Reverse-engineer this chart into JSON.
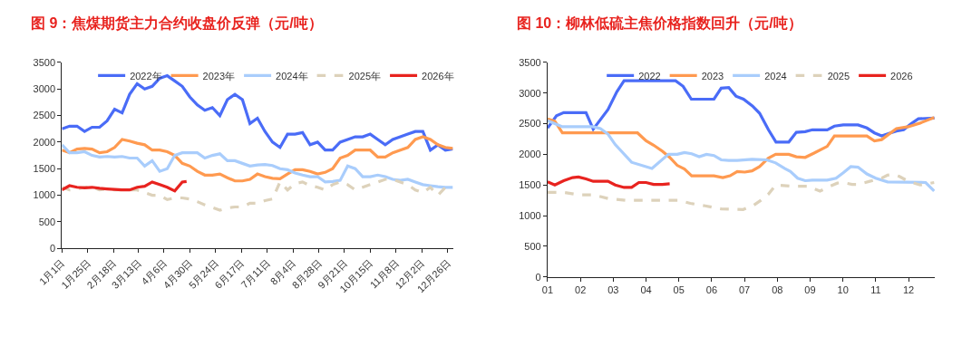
{
  "chart_data": [
    {
      "type": "line",
      "title": "图 9：焦煤期货主力合约收盘价反弹（元/吨）",
      "x": [
        "--01-01",
        "--01-08",
        "--01-15",
        "--01-22",
        "--01-29",
        "--02-05",
        "--02-12",
        "--02-19",
        "--02-26",
        "--03-05",
        "--03-12",
        "--03-19",
        "--03-26",
        "--04-02",
        "--04-09",
        "--04-16",
        "--04-23",
        "--04-30",
        "--05-07",
        "--05-14",
        "--05-21",
        "--05-28",
        "--06-04",
        "--06-11",
        "--06-18",
        "--06-25",
        "--07-02",
        "--07-09",
        "--07-16",
        "--07-23",
        "--07-30",
        "--08-06",
        "--08-13",
        "--08-20",
        "--08-27",
        "--09-03",
        "--09-10",
        "--09-17",
        "--09-24",
        "--10-01",
        "--10-08",
        "--10-15",
        "--10-22",
        "--10-29",
        "--11-05",
        "--11-12",
        "--11-19",
        "--11-26",
        "--12-03",
        "--12-10",
        "--12-17",
        "--12-24",
        "--12-31"
      ],
      "series": [
        {
          "name": "2022年",
          "color": "#4a6cf7",
          "values": [
            2250,
            2300,
            2300,
            2200,
            2280,
            2280,
            2400,
            2620,
            2550,
            2900,
            3100,
            3000,
            3050,
            3200,
            3250,
            3150,
            3050,
            2850,
            2700,
            2600,
            2650,
            2500,
            2800,
            2900,
            2800,
            2350,
            2450,
            2200,
            2000,
            1900,
            2150,
            2150,
            2180,
            1950,
            2000,
            1850,
            1850,
            2000,
            2050,
            2100,
            2100,
            2150,
            2050,
            1950,
            2050,
            2100,
            2150,
            2200,
            2200,
            1850,
            1950,
            1850,
            1870
          ]
        },
        {
          "name": "2023年",
          "color": "#ff9a50",
          "values": [
            1850,
            1800,
            1870,
            1880,
            1870,
            1800,
            1820,
            1900,
            2050,
            2020,
            1980,
            1950,
            1850,
            1850,
            1820,
            1750,
            1600,
            1550,
            1450,
            1380,
            1380,
            1400,
            1330,
            1270,
            1270,
            1300,
            1400,
            1350,
            1320,
            1310,
            1400,
            1480,
            1480,
            1450,
            1400,
            1430,
            1500,
            1700,
            1750,
            1850,
            1850,
            1850,
            1720,
            1720,
            1800,
            1850,
            1900,
            2050,
            2100,
            2050,
            1950,
            1900,
            1880
          ]
        },
        {
          "name": "2024年",
          "color": "#a9cdfc",
          "values": [
            1950,
            1800,
            1800,
            1820,
            1750,
            1720,
            1730,
            1720,
            1730,
            1700,
            1700,
            1550,
            1650,
            1450,
            1500,
            1750,
            1800,
            1800,
            1800,
            1700,
            1750,
            1780,
            1650,
            1650,
            1600,
            1550,
            1570,
            1580,
            1560,
            1500,
            1480,
            1420,
            1380,
            1350,
            1350,
            1250,
            1260,
            1280,
            1550,
            1500,
            1350,
            1350,
            1380,
            1350,
            1300,
            1280,
            1300,
            1250,
            1200,
            1180,
            1160,
            1150,
            1150
          ]
        },
        {
          "name": "2025年",
          "color": "#ddd2bb",
          "line_style": "dashed",
          "values": [
            1150,
            1100,
            1120,
            1150,
            1150,
            1100,
            1120,
            1100,
            1100,
            1100,
            1100,
            1050,
            1000,
            1000,
            920,
            950,
            950,
            930,
            880,
            820,
            770,
            720,
            760,
            780,
            780,
            850,
            850,
            900,
            930,
            1250,
            1100,
            1220,
            1250,
            1180,
            1150,
            1100,
            1200,
            1250,
            1200,
            1100,
            1150,
            1200,
            1250,
            1300,
            1300,
            1250,
            1200,
            1100,
            1050,
            1150,
            1000,
            1150,
            1120
          ]
        },
        {
          "name": "2026年",
          "color": "#e8231f",
          "x": [
            "--01-01",
            "--01-08",
            "--01-15",
            "--01-22",
            "--01-29",
            "--02-05",
            "--02-12",
            "--02-19",
            "--02-26",
            "--03-05",
            "--03-12",
            "--03-19",
            "--03-26",
            "--04-02",
            "--04-09",
            "--04-16",
            "--04-23",
            "--04-27"
          ],
          "values": [
            1100,
            1180,
            1150,
            1140,
            1150,
            1130,
            1120,
            1110,
            1100,
            1100,
            1150,
            1170,
            1250,
            1200,
            1150,
            1080,
            1250,
            1260
          ]
        }
      ],
      "xlim": [
        "--01-01",
        "--12-31"
      ],
      "xticks": [
        {
          "value": "--01-01",
          "label": "1月1日"
        },
        {
          "value": "--01-25",
          "label": "1月25日"
        },
        {
          "value": "--02-18",
          "label": "2月18日"
        },
        {
          "value": "--03-13",
          "label": "3月13日"
        },
        {
          "value": "--04-06",
          "label": "4月6日"
        },
        {
          "value": "--04-30",
          "label": "4月30日"
        },
        {
          "value": "--05-24",
          "label": "5月24日"
        },
        {
          "value": "--06-17",
          "label": "6月17日"
        },
        {
          "value": "--07-11",
          "label": "7月11日"
        },
        {
          "value": "--08-04",
          "label": "8月4日"
        },
        {
          "value": "--08-28",
          "label": "8月28日"
        },
        {
          "value": "--09-21",
          "label": "9月21日"
        },
        {
          "value": "--10-15",
          "label": "10月15日"
        },
        {
          "value": "--11-08",
          "label": "11月8日"
        },
        {
          "value": "--12-02",
          "label": "12月2日"
        },
        {
          "value": "--12-26",
          "label": "12月26日"
        }
      ],
      "ylim": [
        0,
        3500
      ],
      "yticks": [
        0,
        500,
        1000,
        1500,
        2000,
        2500,
        3000,
        3500
      ],
      "grid": false,
      "legend": "top",
      "marker": "none",
      "line_style": "solid"
    },
    {
      "type": "line",
      "title": "图 10：柳林低硫主焦价格指数回升（元/吨）",
      "series": [
        {
          "name": "2022",
          "color": "#4a6cf7",
          "x": [
            1.0,
            1.27,
            1.49,
            2.17,
            2.39,
            2.84,
            3.11,
            3.33,
            4.9,
            5.13,
            5.38,
            6.07,
            6.29,
            6.52,
            6.74,
            6.97,
            7.24,
            7.46,
            7.73,
            7.96,
            8.35,
            8.58,
            8.85,
            9.07,
            9.52,
            9.74,
            10.01,
            10.46,
            10.73,
            10.96,
            11.18,
            11.45,
            11.63,
            11.85,
            12.08,
            12.3,
            12.79
          ],
          "values": [
            2430,
            2630,
            2680,
            2680,
            2410,
            2730,
            3020,
            3200,
            3200,
            3110,
            2900,
            2900,
            3080,
            3090,
            2950,
            2900,
            2790,
            2670,
            2400,
            2200,
            2200,
            2360,
            2370,
            2400,
            2400,
            2460,
            2480,
            2480,
            2430,
            2350,
            2300,
            2350,
            2380,
            2400,
            2500,
            2580,
            2590
          ]
        },
        {
          "name": "2023",
          "color": "#ff9a50",
          "x": [
            1.0,
            1.22,
            1.45,
            3.74,
            4.0,
            4.23,
            4.5,
            4.72,
            4.95,
            5.17,
            5.39,
            6.07,
            6.34,
            6.56,
            6.78,
            7.01,
            7.23,
            7.46,
            7.73,
            7.95,
            8.35,
            8.58,
            8.85,
            9.12,
            9.52,
            9.74,
            10.73,
            10.96,
            11.18,
            11.63,
            11.99,
            12.35,
            12.78
          ],
          "values": [
            2580,
            2540,
            2350,
            2350,
            2220,
            2150,
            2050,
            1950,
            1820,
            1760,
            1650,
            1650,
            1620,
            1650,
            1720,
            1710,
            1730,
            1800,
            1940,
            2000,
            2000,
            1960,
            1950,
            2020,
            2130,
            2300,
            2300,
            2220,
            2240,
            2420,
            2450,
            2510,
            2600
          ]
        },
        {
          "name": "2024",
          "color": "#a9cdfc",
          "x": [
            1.0,
            1.45,
            2.39,
            2.61,
            2.84,
            3.06,
            3.56,
            4.18,
            4.68,
            4.95,
            5.17,
            5.39,
            5.62,
            5.84,
            6.07,
            6.29,
            6.52,
            6.78,
            7.23,
            7.68,
            7.95,
            8.22,
            8.4,
            8.62,
            8.85,
            9.07,
            9.52,
            9.79,
            10.01,
            10.24,
            10.46,
            10.73,
            11.0,
            11.36,
            12.52,
            12.78
          ],
          "values": [
            2550,
            2450,
            2450,
            2420,
            2330,
            2160,
            1870,
            1770,
            2000,
            2000,
            2030,
            2010,
            1960,
            2000,
            1980,
            1910,
            1900,
            1900,
            1920,
            1910,
            1860,
            1770,
            1720,
            1610,
            1570,
            1580,
            1580,
            1610,
            1700,
            1800,
            1790,
            1680,
            1610,
            1550,
            1540,
            1400
          ]
        },
        {
          "name": "2025",
          "color": "#ddd2bb",
          "line_style": "dashed",
          "x": [
            1.0,
            1.49,
            1.94,
            2.39,
            2.84,
            3.38,
            4.99,
            5.35,
            5.8,
            6.29,
            6.96,
            7.28,
            7.5,
            7.73,
            7.95,
            8.4,
            8.94,
            9.3,
            9.57,
            9.83,
            10.01,
            10.28,
            10.46,
            10.82,
            11.18,
            11.36,
            11.54,
            11.72,
            11.99,
            12.35,
            12.78
          ],
          "values": [
            1380,
            1380,
            1340,
            1340,
            1280,
            1250,
            1250,
            1200,
            1160,
            1110,
            1100,
            1170,
            1250,
            1350,
            1500,
            1480,
            1480,
            1400,
            1470,
            1530,
            1540,
            1510,
            1510,
            1560,
            1610,
            1660,
            1670,
            1640,
            1560,
            1500,
            1540
          ]
        },
        {
          "name": "2026",
          "color": "#e8231f",
          "x": [
            1.0,
            1.22,
            1.49,
            1.76,
            1.94,
            2.17,
            2.39,
            2.84,
            3.06,
            3.33,
            3.56,
            3.78,
            4.0,
            4.23,
            4.5,
            4.72
          ],
          "values": [
            1550,
            1500,
            1570,
            1620,
            1630,
            1600,
            1560,
            1560,
            1500,
            1460,
            1460,
            1540,
            1540,
            1510,
            1510,
            1520
          ]
        }
      ],
      "xlim": [
        1,
        12.8
      ],
      "xticks": [
        {
          "value": 1,
          "label": "01"
        },
        {
          "value": 2,
          "label": "02"
        },
        {
          "value": 3,
          "label": "03"
        },
        {
          "value": 4,
          "label": "04"
        },
        {
          "value": 5,
          "label": "05"
        },
        {
          "value": 6,
          "label": "06"
        },
        {
          "value": 7,
          "label": "07"
        },
        {
          "value": 8,
          "label": "08"
        },
        {
          "value": 9,
          "label": "09"
        },
        {
          "value": 10,
          "label": "10"
        },
        {
          "value": 11,
          "label": "11"
        },
        {
          "value": 12,
          "label": "12"
        }
      ],
      "ylim": [
        0,
        3500
      ],
      "yticks": [
        0,
        500,
        1000,
        1500,
        2000,
        2500,
        3000,
        3500
      ],
      "grid": false,
      "legend": "top",
      "marker": "none",
      "line_style": "solid"
    }
  ]
}
